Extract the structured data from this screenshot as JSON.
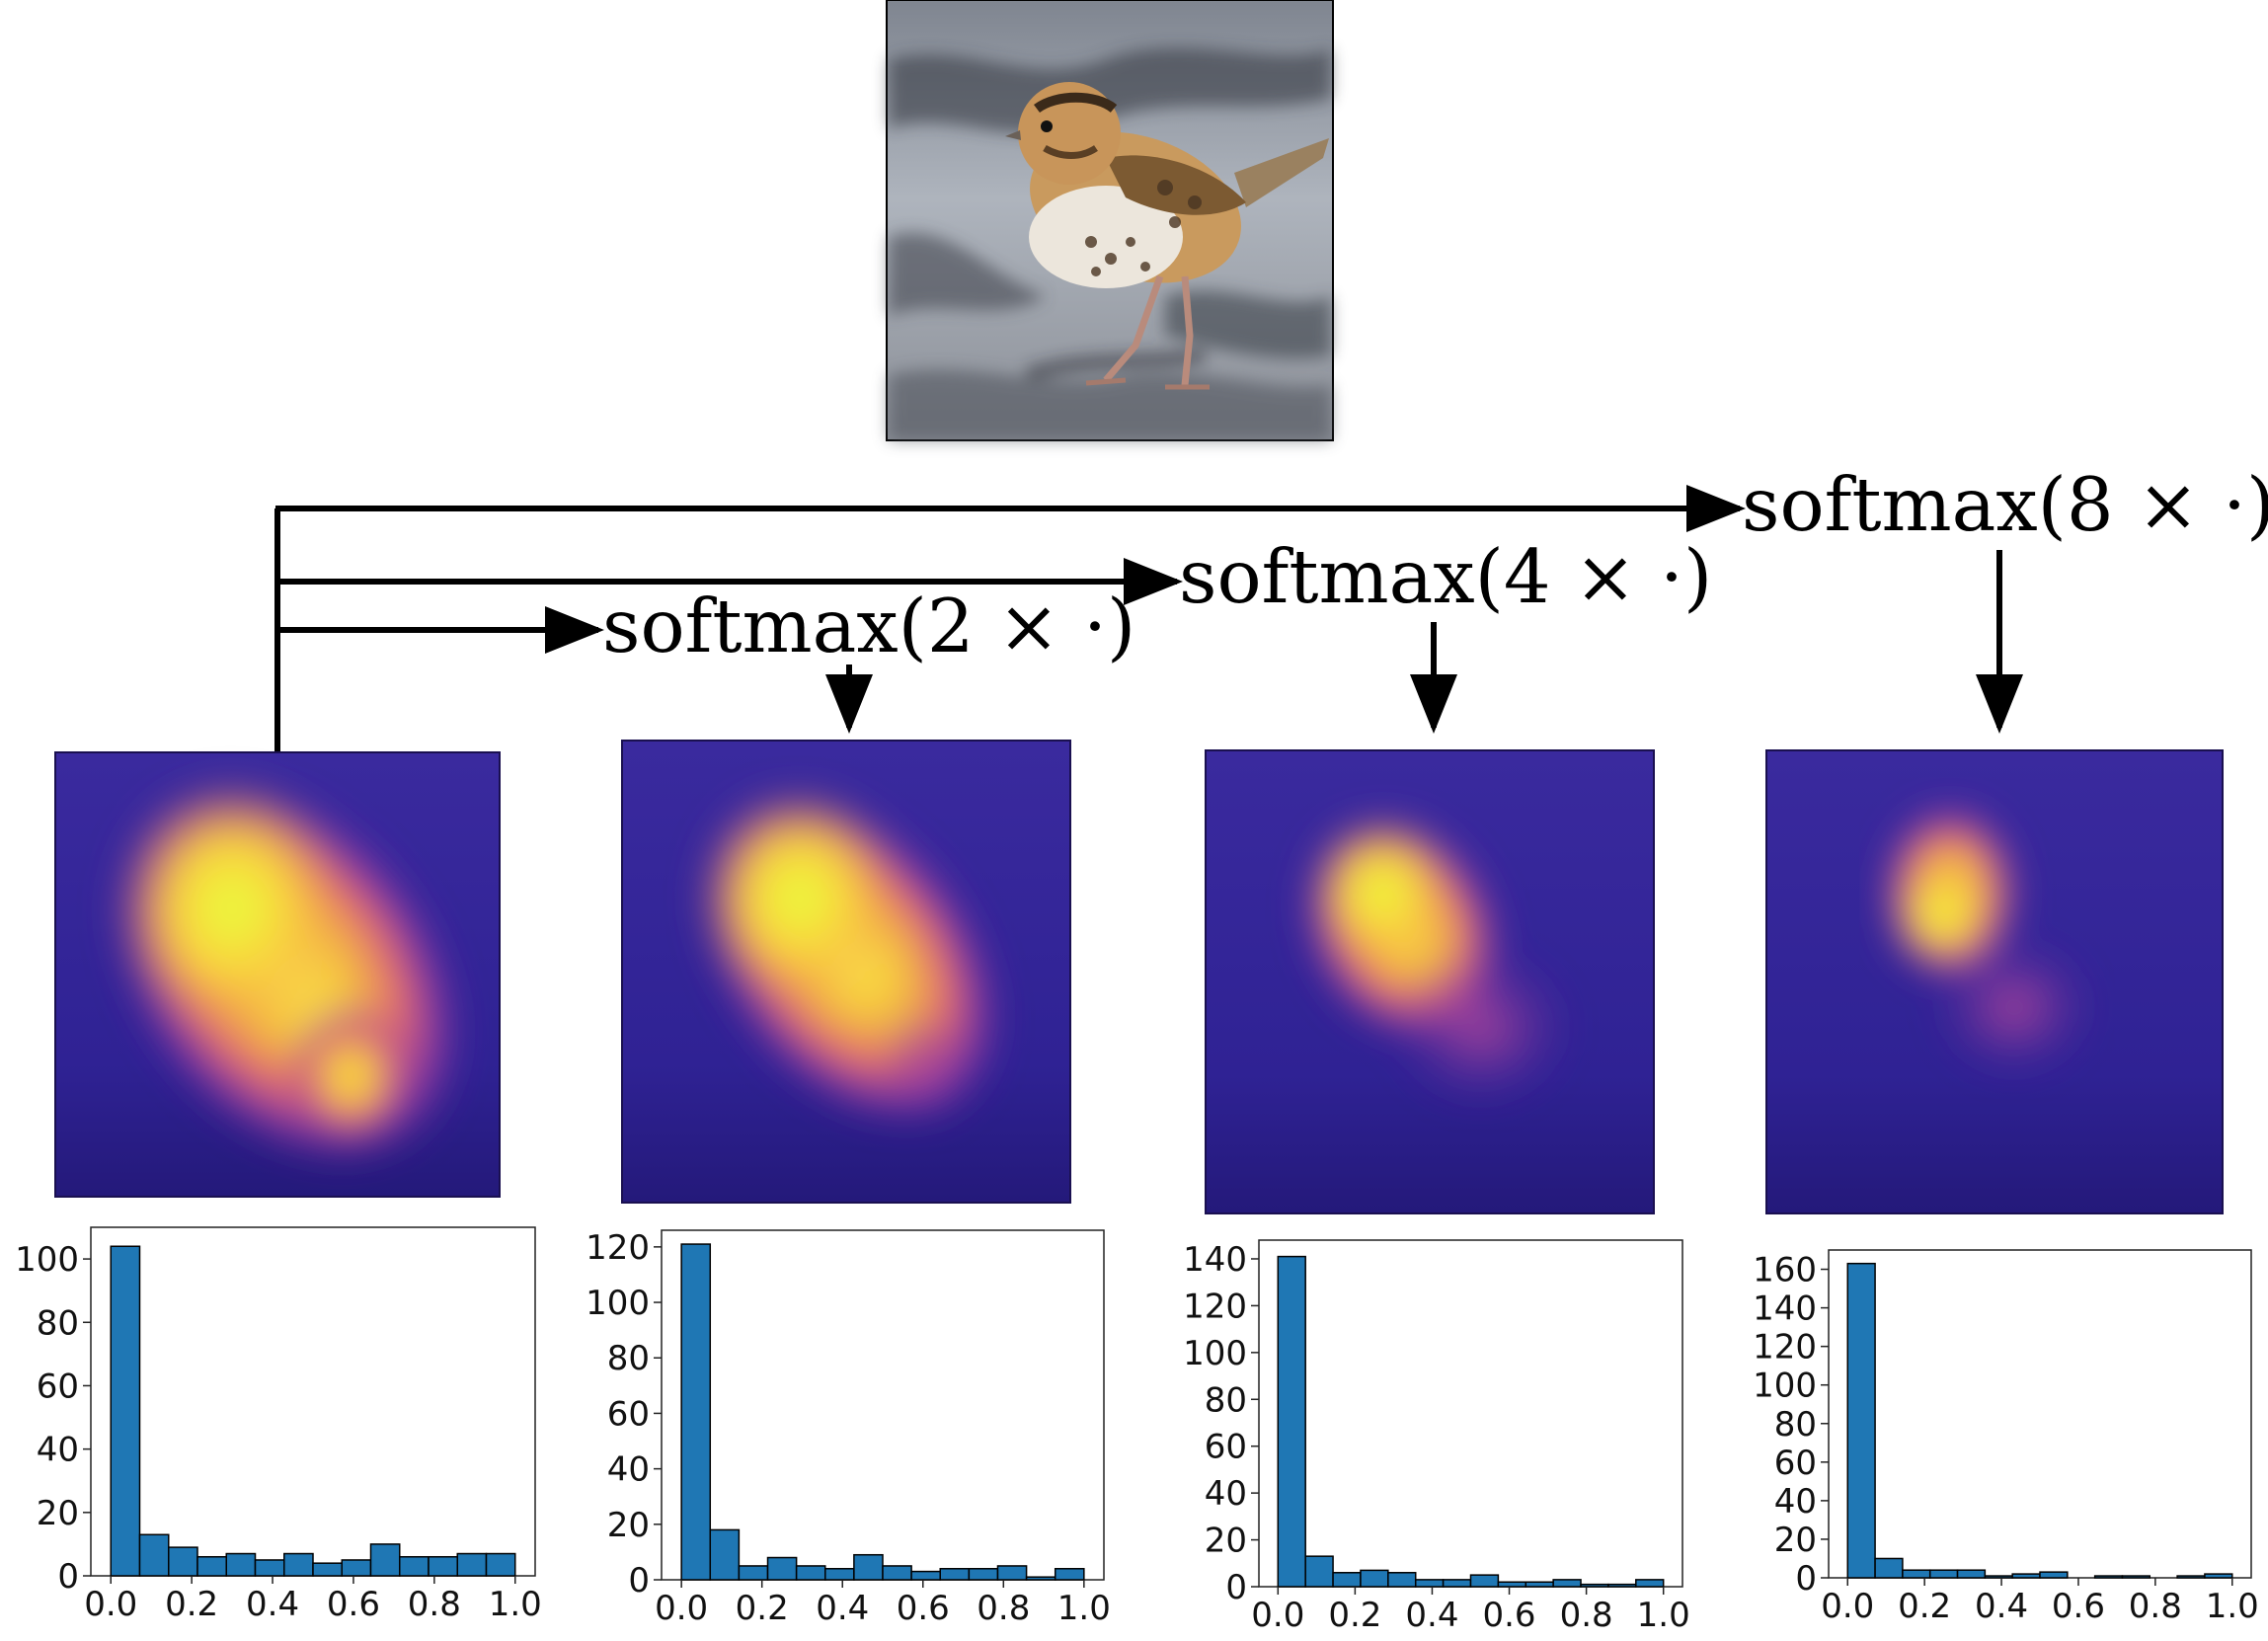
{
  "labels": [
    "softmax(2 × ·)",
    "softmax(4 × ·)",
    "softmax(8 × ·)"
  ],
  "colors": {
    "bar": "#1f77b4",
    "bar_edge": "#000000",
    "arrow": "#000000",
    "heat_bg": "#2c1a8c"
  },
  "chart_data": [
    {
      "type": "bar",
      "x_ticks": [
        "0.0",
        "0.2",
        "0.4",
        "0.6",
        "0.8",
        "1.0"
      ],
      "y_ticks": [
        "0",
        "20",
        "40",
        "60",
        "80",
        "100"
      ],
      "xlim": [
        0,
        1
      ],
      "ylim": [
        0,
        110
      ],
      "values": [
        104,
        13,
        9,
        6,
        7,
        5,
        7,
        4,
        5,
        10,
        6,
        6,
        7,
        7
      ]
    },
    {
      "type": "bar",
      "x_ticks": [
        "0.0",
        "0.2",
        "0.4",
        "0.6",
        "0.8",
        "1.0"
      ],
      "y_ticks": [
        "0",
        "20",
        "40",
        "60",
        "80",
        "100",
        "120"
      ],
      "xlim": [
        0,
        1
      ],
      "ylim": [
        0,
        126
      ],
      "values": [
        121,
        18,
        5,
        8,
        5,
        4,
        9,
        5,
        3,
        4,
        4,
        5,
        1,
        4
      ]
    },
    {
      "type": "bar",
      "x_ticks": [
        "0.0",
        "0.2",
        "0.4",
        "0.6",
        "0.8",
        "1.0"
      ],
      "y_ticks": [
        "0",
        "20",
        "40",
        "60",
        "80",
        "100",
        "120",
        "140"
      ],
      "xlim": [
        0,
        1
      ],
      "ylim": [
        0,
        148
      ],
      "values": [
        141,
        13,
        6,
        7,
        6,
        3,
        3,
        5,
        2,
        2,
        3,
        1,
        1,
        3
      ]
    },
    {
      "type": "bar",
      "x_ticks": [
        "0.0",
        "0.2",
        "0.4",
        "0.6",
        "0.8",
        "1.0"
      ],
      "y_ticks": [
        "0",
        "20",
        "40",
        "60",
        "80",
        "100",
        "120",
        "140",
        "160"
      ],
      "xlim": [
        0,
        1
      ],
      "ylim": [
        0,
        170
      ],
      "values": [
        163,
        10,
        4,
        4,
        4,
        1,
        2,
        3,
        0,
        1,
        1,
        0,
        1,
        2
      ]
    }
  ]
}
